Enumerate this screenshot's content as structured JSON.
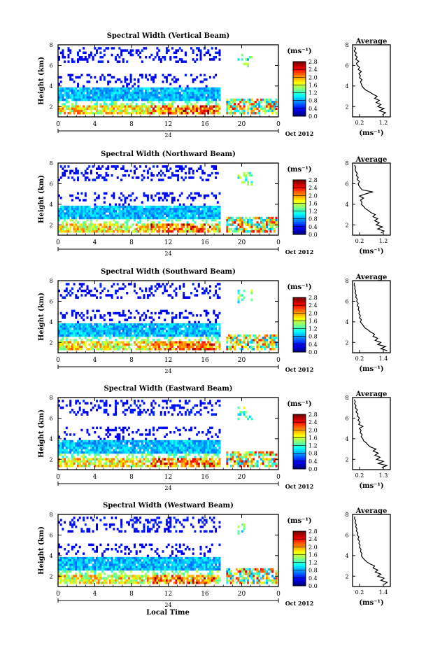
{
  "figure": {
    "common_xlabel": "Local Time",
    "date_label": "Oct 2012",
    "day_label": "24",
    "x_ticks": [
      "0",
      "4",
      "8",
      "12",
      "16",
      "20",
      "0"
    ],
    "y_ticks": [
      "2",
      "4",
      "6",
      "8"
    ],
    "ylabel": "Height (km)",
    "unit_label": "(ms⁻¹)",
    "avg_title": "Average",
    "avg_xlabel": "(ms⁻¹)",
    "avg_y_ticks": [
      "2",
      "4",
      "6",
      "8"
    ],
    "colorbar_ticks": [
      "0.0",
      "0.4",
      "0.8",
      "1.2",
      "1.6",
      "2.0",
      "2.4",
      "2.8"
    ]
  },
  "chart_data": [
    {
      "type": "heatmap",
      "title": "Spectral Width (Vertical Beam)",
      "ylabel": "Height (km)",
      "xlim": [
        0,
        24
      ],
      "ylim": [
        1,
        8
      ],
      "clim": [
        0,
        2.8
      ],
      "colormap": "jet",
      "avg_profile": {
        "title": "Average",
        "xlim": [
          0.2,
          1.4
        ],
        "x_ticks": [
          "0.2",
          "1.2"
        ],
        "height": [
          1.2,
          1.4,
          1.6,
          1.8,
          2.0,
          2.2,
          2.4,
          2.6,
          2.8,
          3.0,
          3.2,
          3.4,
          3.6,
          3.8,
          4.0,
          4.2,
          4.4,
          4.6,
          4.8,
          5.0,
          5.2,
          5.4,
          5.6,
          5.8,
          6.0,
          6.2,
          6.4,
          6.6,
          6.8,
          7.0,
          7.2,
          7.4,
          7.6,
          7.8
        ],
        "value": [
          1.15,
          1.25,
          1.05,
          1.2,
          1.0,
          1.1,
          0.95,
          1.05,
          0.9,
          0.98,
          0.85,
          0.75,
          0.62,
          0.55,
          0.5,
          0.48,
          0.45,
          0.5,
          0.42,
          0.45,
          0.4,
          0.48,
          0.38,
          0.42,
          0.35,
          0.32,
          0.4,
          0.3,
          0.35,
          0.28,
          0.32,
          0.25,
          0.3,
          0.26
        ]
      }
    },
    {
      "type": "heatmap",
      "title": "Spectral Width (Northward Beam)",
      "ylabel": "Height (km)",
      "xlim": [
        0,
        24
      ],
      "ylim": [
        1,
        8
      ],
      "clim": [
        0,
        2.8
      ],
      "colormap": "jet",
      "avg_profile": {
        "title": "Average",
        "xlim": [
          0.2,
          1.4
        ],
        "x_ticks": [
          "0.2",
          "1.2"
        ],
        "height": [
          1.2,
          1.4,
          1.6,
          1.8,
          2.0,
          2.2,
          2.4,
          2.6,
          2.8,
          3.0,
          3.2,
          3.4,
          3.6,
          3.8,
          4.0,
          4.2,
          4.4,
          4.6,
          4.8,
          5.0,
          5.2,
          5.4,
          5.6,
          5.8,
          6.0,
          6.2,
          6.4,
          6.6,
          6.8,
          7.0,
          7.2,
          7.4,
          7.6,
          7.8
        ],
        "value": [
          1.1,
          1.2,
          1.0,
          1.15,
          0.95,
          1.05,
          0.9,
          1.0,
          0.85,
          0.92,
          0.78,
          0.7,
          0.6,
          0.55,
          0.48,
          0.5,
          0.45,
          0.55,
          0.42,
          0.6,
          0.85,
          0.5,
          0.45,
          0.4,
          0.38,
          0.42,
          0.35,
          0.38,
          0.32,
          0.35,
          0.3,
          0.28,
          0.3,
          0.26
        ]
      }
    },
    {
      "type": "heatmap",
      "title": "Spectral Width (Southward Beam)",
      "ylabel": "Height (km)",
      "xlim": [
        0,
        24
      ],
      "ylim": [
        1,
        8
      ],
      "clim": [
        0,
        2.8
      ],
      "colormap": "jet",
      "avg_profile": {
        "title": "Average",
        "xlim": [
          0.2,
          1.4
        ],
        "x_ticks": [
          "0.2",
          "1.4"
        ],
        "height": [
          1.2,
          1.4,
          1.6,
          1.8,
          2.0,
          2.2,
          2.4,
          2.6,
          2.8,
          3.0,
          3.2,
          3.4,
          3.6,
          3.8,
          4.0,
          4.2,
          4.4,
          4.6,
          4.8,
          5.0,
          5.2,
          5.4,
          5.6,
          5.8,
          6.0,
          6.2,
          6.4,
          6.6,
          6.8,
          7.0,
          7.2,
          7.4,
          7.6,
          7.8
        ],
        "value": [
          1.3,
          1.1,
          1.25,
          1.0,
          1.1,
          0.92,
          1.0,
          0.85,
          0.9,
          0.78,
          0.7,
          0.6,
          0.55,
          0.5,
          0.45,
          0.48,
          0.42,
          0.45,
          0.4,
          0.42,
          0.38,
          0.4,
          0.35,
          0.38,
          0.33,
          0.35,
          0.3,
          0.32,
          0.28,
          0.3,
          0.27,
          0.28,
          0.25,
          0.26
        ]
      }
    },
    {
      "type": "heatmap",
      "title": "Spectral Width (Eastward Beam)",
      "ylabel": "Height (km)",
      "xlim": [
        0,
        24
      ],
      "ylim": [
        1,
        8
      ],
      "clim": [
        0,
        2.8
      ],
      "colormap": "jet",
      "avg_profile": {
        "title": "Average",
        "xlim": [
          0.2,
          1.3
        ],
        "x_ticks": [
          "0.2",
          "1.3"
        ],
        "height": [
          1.2,
          1.4,
          1.6,
          1.8,
          2.0,
          2.2,
          2.4,
          2.6,
          2.8,
          3.0,
          3.2,
          3.4,
          3.6,
          3.8,
          4.0,
          4.2,
          4.4,
          4.6,
          4.8,
          5.0,
          5.2,
          5.4,
          5.6,
          5.8,
          6.0,
          6.2,
          6.4,
          6.6,
          6.8,
          7.0,
          7.2,
          7.4,
          7.6,
          7.8
        ],
        "value": [
          1.05,
          1.2,
          0.95,
          1.1,
          0.9,
          1.0,
          0.85,
          0.95,
          0.8,
          0.88,
          0.72,
          0.65,
          0.6,
          0.52,
          0.5,
          0.45,
          0.48,
          0.42,
          0.45,
          0.4,
          0.5,
          0.38,
          0.42,
          0.36,
          0.4,
          0.34,
          0.36,
          0.3,
          0.34,
          0.28,
          0.3,
          0.26,
          0.28,
          0.25
        ]
      }
    },
    {
      "type": "heatmap",
      "title": "Spectral Width (Westward Beam)",
      "ylabel": "Height (km)",
      "xlim": [
        0,
        24
      ],
      "ylim": [
        1,
        8
      ],
      "clim": [
        0,
        2.8
      ],
      "colormap": "jet",
      "avg_profile": {
        "title": "Average",
        "xlim": [
          0.2,
          1.4
        ],
        "x_ticks": [
          "0.2",
          "1.4"
        ],
        "height": [
          1.2,
          1.4,
          1.6,
          1.8,
          2.0,
          2.2,
          2.4,
          2.6,
          2.8,
          3.0,
          3.2,
          3.4,
          3.6,
          3.8,
          4.0,
          4.2,
          4.4,
          4.6,
          4.8,
          5.0,
          5.2,
          5.4,
          5.6,
          5.8,
          6.0,
          6.2,
          6.4,
          6.6,
          6.8,
          7.0,
          7.2,
          7.4,
          7.6,
          7.8
        ],
        "value": [
          1.2,
          1.3,
          1.1,
          1.2,
          1.0,
          1.1,
          0.92,
          1.0,
          0.85,
          0.9,
          0.75,
          0.65,
          0.58,
          0.52,
          0.48,
          0.5,
          0.45,
          0.47,
          0.42,
          0.44,
          0.4,
          0.42,
          0.37,
          0.4,
          0.35,
          0.37,
          0.32,
          0.34,
          0.3,
          0.32,
          0.28,
          0.3,
          0.26,
          0.27
        ]
      }
    }
  ]
}
